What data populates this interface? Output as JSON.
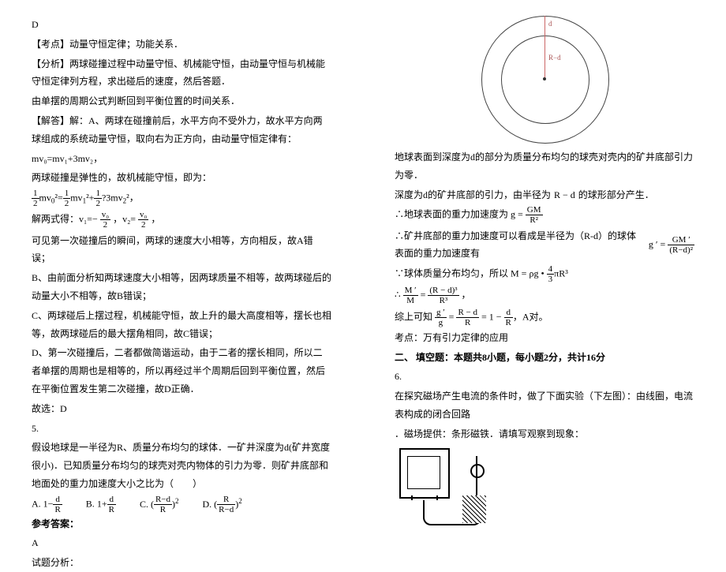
{
  "left": {
    "ans": "D",
    "kaodian_label": "【考点】",
    "kaodian": "动量守恒定律；功能关系．",
    "fenxi_label": "【分析】",
    "fenxi": "两球碰撞过程中动量守恒、机械能守恒，由动量守恒与机械能守恒定律列方程，求出碰后的速度，然后答题．",
    "pendulum_line": "由单摆的周期公式判断回到平衡位置的时间关系．",
    "jieda_label": "【解答】",
    "jieda_a": "解：A、两球在碰撞前后，水平方向不受外力，故水平方向两球组成的系统动量守恒，取向右为正方向，由动量守恒定律有：",
    "eq1": "mv₀=mv₁+3mv₂，",
    "elastic": "两球碰撞是弹性的，故机械能守恒，即为：",
    "eq2_prefix": "",
    "solve_prefix": "解两式得：v₁=−",
    "solve_mid": "，v₂=",
    "solve_suffix": "，",
    "concl_a": "可见第一次碰撞后的瞬间，两球的速度大小相等，方向相反，故A错误；",
    "b": "B、由前面分析知两球速度大小相等，因两球质量不相等，故两球碰后的动量大小不相等，故B错误；",
    "c": "C、两球碰后上摆过程，机械能守恒，故上升的最大高度相等，摆长也相等，故两球碰后的最大摆角相同，故C错误；",
    "d": "D、第一次碰撞后，二者都做简谐运动，由于二者的摆长相同，所以二者单摆的周期也是相等的，所以再经过半个周期后回到平衡位置，然后在平衡位置发生第二次碰撞，故D正确．",
    "guxuan": "故选：D",
    "q5": "5.",
    "q5_text": "假设地球是一半径为R、质量分布均匀的球体．一矿井深度为d(矿井宽度很小)．已知质量分布均匀的球壳对壳内物体的引力为零．则矿井底部和地面处的重力加速度大小之比为（　　）",
    "optA": "A.",
    "optB": "B.",
    "optC": "C.",
    "optD": "D.",
    "ckda": "参考答案：",
    "ans5": "A",
    "shiti": "试题分析："
  },
  "right": {
    "diagram": {
      "d": "d",
      "rd": "R−d"
    },
    "line1": "地球表面到深度为d的部分为质量分布均匀的球壳对壳内的矿井底部引力为零．",
    "line2_a": "深度为d的矿井底部的引力，由半径为",
    "line2_b": "的球形部分产生．",
    "line3": "∴地球表面的重力加速度为",
    "line4": "∴矿井底部的重力加速度可以看成是半径为（R-d）的球体表面的重力加速度有",
    "line5_a": "∵球体质量分布均匀，所以",
    "conclusion": "综上可知",
    "a_correct": "，A对。",
    "kaodian2": "考点：万有引力定律的应用",
    "section2": "二、 填空题：本题共8小题，每小题2分，共计16分",
    "q6": "6.",
    "q6_text1": "在探究磁场产生电流的条件时，做了下面实验（下左图）：由线圈，电流表构成的闭合回路",
    "q6_text2": "．磁场提供：条形磁铁．请填写观察到现象："
  },
  "frac": {
    "half_num": "1",
    "half_den": "2",
    "v0_num": "v₀",
    "two": "2",
    "oneminus_num": "d",
    "oneminus_den": "R",
    "oneplus_num": "d",
    "oneplus_den": "R",
    "rdR_num": "R−d",
    "rdR_den": "R",
    "rRd_num": "R",
    "rRd_den": "R−d",
    "gGM_num": "GM",
    "gGM_den": "R²",
    "gGMp_num": "GM ′",
    "gGMp_den": "(R−d)²",
    "Mrho": "M = ρg •",
    "fourthirds_num": "4",
    "fourthirds_den": "3",
    "piR3": "πR³",
    "Mp_num": "M ′",
    "Mp_den": "M",
    "rd3_num": "(R − d)³",
    "rd3_den": "R³",
    "gpg_num": "g ′",
    "gpg_den": "g",
    "rdr_num": "R − d",
    "rdr_den": "R",
    "dR_num": "d",
    "dR_den": "R",
    "Rd": "R − d"
  }
}
